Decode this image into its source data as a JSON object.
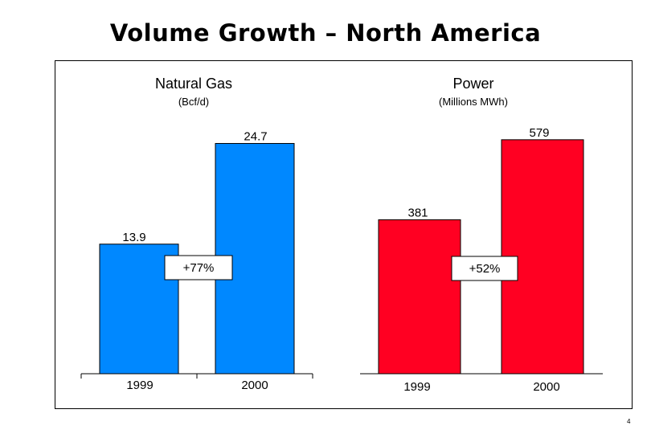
{
  "page_title": "Volume Growth – North America",
  "page_number": "4",
  "chart_data": [
    {
      "type": "bar",
      "title": "Natural Gas",
      "subtitle": "(Bcf/d)",
      "categories": [
        "1999",
        "2000"
      ],
      "values": [
        13.9,
        24.7
      ],
      "value_labels": [
        "13.9",
        "24.7"
      ],
      "ylim": [
        0,
        30
      ],
      "grid": false,
      "color": "#0088ff",
      "annotation": "+77%"
    },
    {
      "type": "bar",
      "title": "Power",
      "subtitle": "(Millions MWh)",
      "categories": [
        "1999",
        "2000"
      ],
      "values": [
        381,
        579
      ],
      "value_labels": [
        "381",
        "579"
      ],
      "ylim": [
        0,
        700
      ],
      "grid": false,
      "color": "#ff0022",
      "annotation": "+52%"
    }
  ]
}
